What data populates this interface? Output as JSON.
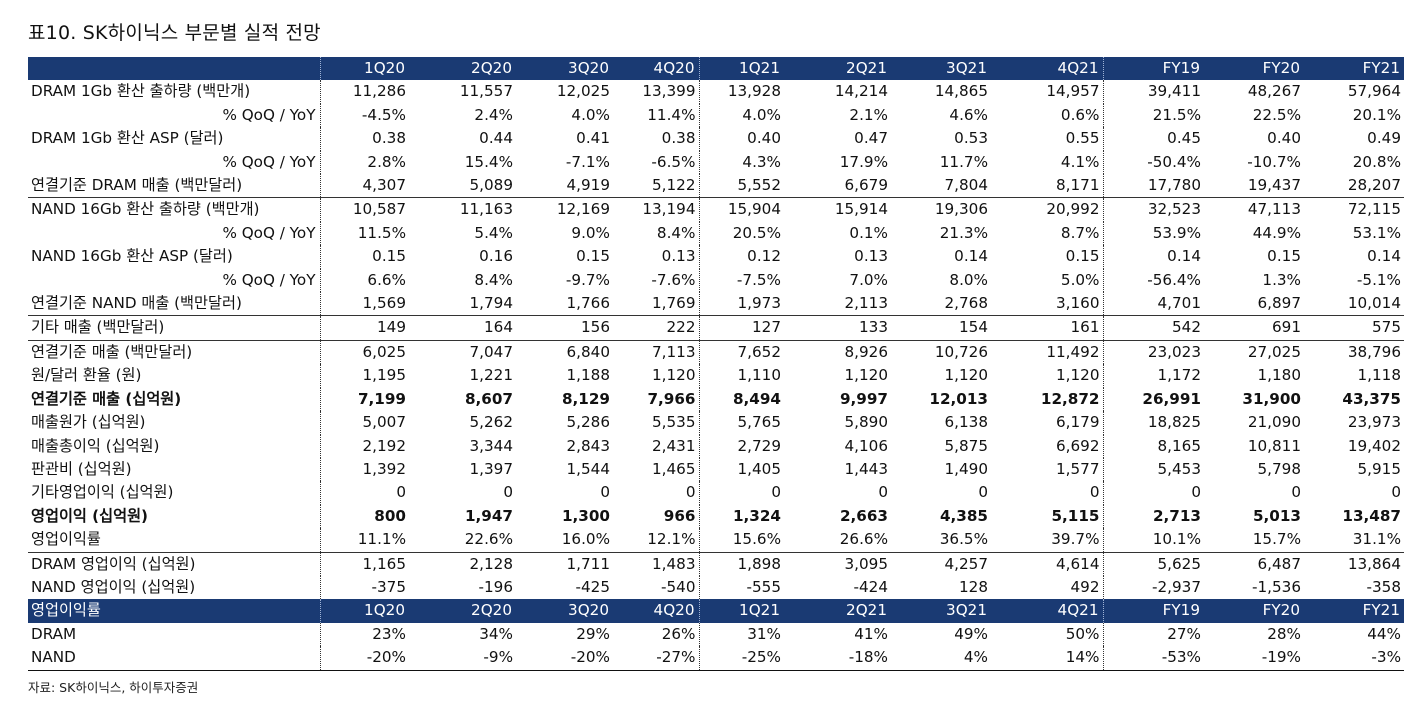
{
  "title": "표10. SK하이닉스 부문별 실적 전망",
  "columns": [
    "1Q20",
    "2Q20",
    "3Q20",
    "4Q20",
    "1Q21",
    "2Q21",
    "3Q21",
    "4Q21",
    "FY19",
    "FY20",
    "FY21"
  ],
  "rows1": [
    {
      "label": "DRAM 1Gb 환산 출하량 (백만개)",
      "values": [
        "11,286",
        "11,557",
        "12,025",
        "13,399",
        "13,928",
        "14,214",
        "14,865",
        "14,957",
        "39,411",
        "48,267",
        "57,964"
      ]
    },
    {
      "label": "% QoQ / YoY",
      "sub": true,
      "values": [
        "-4.5%",
        "2.4%",
        "4.0%",
        "11.4%",
        "4.0%",
        "2.1%",
        "4.6%",
        "0.6%",
        "21.5%",
        "22.5%",
        "20.1%"
      ]
    },
    {
      "label": "DRAM 1Gb 환산 ASP (달러)",
      "values": [
        "0.38",
        "0.44",
        "0.41",
        "0.38",
        "0.40",
        "0.47",
        "0.53",
        "0.55",
        "0.45",
        "0.40",
        "0.49"
      ]
    },
    {
      "label": "% QoQ / YoY",
      "sub": true,
      "values": [
        "2.8%",
        "15.4%",
        "-7.1%",
        "-6.5%",
        "4.3%",
        "17.9%",
        "11.7%",
        "4.1%",
        "-50.4%",
        "-10.7%",
        "20.8%"
      ]
    },
    {
      "label": "연결기준 DRAM 매출 (백만달러)",
      "values": [
        "4,307",
        "5,089",
        "4,919",
        "5,122",
        "5,552",
        "6,679",
        "7,804",
        "8,171",
        "17,780",
        "19,437",
        "28,207"
      ]
    },
    {
      "label": "NAND 16Gb 환산 출하량 (백만개)",
      "bt": true,
      "values": [
        "10,587",
        "11,163",
        "12,169",
        "13,194",
        "15,904",
        "15,914",
        "19,306",
        "20,992",
        "32,523",
        "47,113",
        "72,115"
      ]
    },
    {
      "label": "% QoQ / YoY",
      "sub": true,
      "values": [
        "11.5%",
        "5.4%",
        "9.0%",
        "8.4%",
        "20.5%",
        "0.1%",
        "21.3%",
        "8.7%",
        "53.9%",
        "44.9%",
        "53.1%"
      ]
    },
    {
      "label": "NAND 16Gb 환산 ASP (달러)",
      "values": [
        "0.15",
        "0.16",
        "0.15",
        "0.13",
        "0.12",
        "0.13",
        "0.14",
        "0.15",
        "0.14",
        "0.15",
        "0.14"
      ]
    },
    {
      "label": "% QoQ / YoY",
      "sub": true,
      "values": [
        "6.6%",
        "8.4%",
        "-9.7%",
        "-7.6%",
        "-7.5%",
        "7.0%",
        "8.0%",
        "5.0%",
        "-56.4%",
        "1.3%",
        "-5.1%"
      ]
    },
    {
      "label": "연결기준 NAND 매출 (백만달러)",
      "values": [
        "1,569",
        "1,794",
        "1,766",
        "1,769",
        "1,973",
        "2,113",
        "2,768",
        "3,160",
        "4,701",
        "6,897",
        "10,014"
      ]
    },
    {
      "label": "기타 매출 (백만달러)",
      "bt": true,
      "values": [
        "149",
        "164",
        "156",
        "222",
        "127",
        "133",
        "154",
        "161",
        "542",
        "691",
        "575"
      ]
    },
    {
      "label": "연결기준 매출 (백만달러)",
      "bt": true,
      "values": [
        "6,025",
        "7,047",
        "6,840",
        "7,113",
        "7,652",
        "8,926",
        "10,726",
        "11,492",
        "23,023",
        "27,025",
        "38,796"
      ]
    },
    {
      "label": "원/달러 환율 (원)",
      "values": [
        "1,195",
        "1,221",
        "1,188",
        "1,120",
        "1,110",
        "1,120",
        "1,120",
        "1,120",
        "1,172",
        "1,180",
        "1,118"
      ]
    },
    {
      "label": "연결기준 매출 (십억원)",
      "bold": true,
      "values": [
        "7,199",
        "8,607",
        "8,129",
        "7,966",
        "8,494",
        "9,997",
        "12,013",
        "12,872",
        "26,991",
        "31,900",
        "43,375"
      ]
    },
    {
      "label": "매출원가 (십억원)",
      "values": [
        "5,007",
        "5,262",
        "5,286",
        "5,535",
        "5,765",
        "5,890",
        "6,138",
        "6,179",
        "18,825",
        "21,090",
        "23,973"
      ]
    },
    {
      "label": "매출총이익 (십억원)",
      "values": [
        "2,192",
        "3,344",
        "2,843",
        "2,431",
        "2,729",
        "4,106",
        "5,875",
        "6,692",
        "8,165",
        "10,811",
        "19,402"
      ]
    },
    {
      "label": "판관비 (십억원)",
      "values": [
        "1,392",
        "1,397",
        "1,544",
        "1,465",
        "1,405",
        "1,443",
        "1,490",
        "1,577",
        "5,453",
        "5,798",
        "5,915"
      ]
    },
    {
      "label": "기타영업이익 (십억원)",
      "values": [
        "0",
        "0",
        "0",
        "0",
        "0",
        "0",
        "0",
        "0",
        "0",
        "0",
        "0"
      ]
    },
    {
      "label": "영업이익 (십억원)",
      "bold": true,
      "values": [
        "800",
        "1,947",
        "1,300",
        "966",
        "1,324",
        "2,663",
        "4,385",
        "5,115",
        "2,713",
        "5,013",
        "13,487"
      ]
    },
    {
      "label": "영업이익률",
      "values": [
        "11.1%",
        "22.6%",
        "16.0%",
        "12.1%",
        "15.6%",
        "26.6%",
        "36.5%",
        "39.7%",
        "10.1%",
        "15.7%",
        "31.1%"
      ]
    },
    {
      "label": "DRAM 영업이익 (십억원)",
      "bt": true,
      "values": [
        "1,165",
        "2,128",
        "1,711",
        "1,483",
        "1,898",
        "3,095",
        "4,257",
        "4,614",
        "5,625",
        "6,487",
        "13,864"
      ]
    },
    {
      "label": "NAND 영업이익 (십억원)",
      "values": [
        "-375",
        "-196",
        "-425",
        "-540",
        "-555",
        "-424",
        "128",
        "492",
        "-2,937",
        "-1,536",
        "-358"
      ]
    }
  ],
  "margin_header": "영업이익률",
  "rows2": [
    {
      "label": "DRAM",
      "values": [
        "23%",
        "34%",
        "29%",
        "26%",
        "31%",
        "41%",
        "49%",
        "50%",
        "27%",
        "28%",
        "44%"
      ]
    },
    {
      "label": "NAND",
      "values": [
        "-20%",
        "-9%",
        "-20%",
        "-27%",
        "-25%",
        "-18%",
        "4%",
        "14%",
        "-53%",
        "-19%",
        "-3%"
      ]
    }
  ],
  "source": "자료: SK하이닉스, 하이투자증권",
  "colors": {
    "header_bg": "#1a3a73",
    "header_text": "#ffffff"
  }
}
